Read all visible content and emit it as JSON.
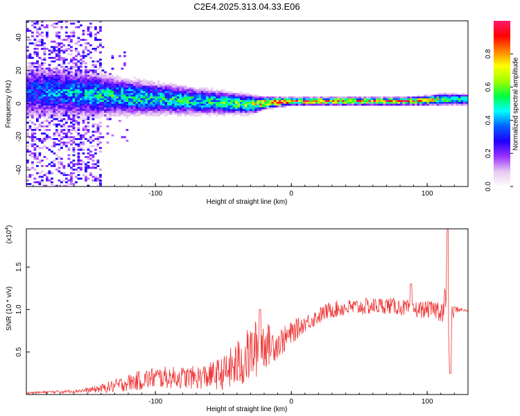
{
  "title": "C2E4.2025.313.04.33.E06",
  "chart_data": [
    {
      "type": "heatmap",
      "name": "spectrogram",
      "xlabel": "Height of straight line (km)",
      "ylabel": "Frequency (Hz)",
      "xlim": [
        -195,
        130
      ],
      "ylim": [
        -50,
        50
      ],
      "xticks": [
        -100,
        0,
        100
      ],
      "yticks": [
        -40,
        -20,
        0,
        20,
        40
      ],
      "colorbar": {
        "label": "Normalized spectral amplitude",
        "ticks": [
          0.0,
          0.2,
          0.4,
          0.6,
          0.8
        ],
        "range": [
          0,
          1
        ],
        "colors": [
          "#ffffff",
          "#e6c8f0",
          "#9b30ff",
          "#2000ff",
          "#0060ff",
          "#00ffff",
          "#00ff40",
          "#a0ff00",
          "#ffff00",
          "#ff8000",
          "#ff0000",
          "#ff1a6e"
        ]
      },
      "ridge": {
        "x": [
          -195,
          -170,
          -150,
          -130,
          -110,
          -90,
          -70,
          -50,
          -30,
          -20,
          0,
          20,
          40,
          60,
          80,
          100,
          110,
          120,
          130
        ],
        "center": [
          8,
          7,
          6,
          5,
          4,
          3,
          2,
          1,
          0,
          1,
          2,
          2,
          2,
          2,
          2,
          2.5,
          3,
          3,
          3
        ],
        "width": [
          15,
          13,
          12,
          10,
          9,
          8,
          7,
          6,
          5,
          3,
          2,
          2,
          2,
          2,
          2,
          2.5,
          3,
          3,
          3
        ],
        "peak": [
          0.35,
          0.45,
          0.5,
          0.55,
          0.55,
          0.55,
          0.55,
          0.6,
          0.7,
          0.95,
          0.98,
          0.98,
          0.98,
          0.97,
          0.95,
          0.85,
          0.7,
          0.6,
          0.55
        ]
      },
      "scatter_zone": {
        "x": [
          -195,
          -140
        ],
        "y": [
          -50,
          50
        ],
        "level": 0.25
      }
    },
    {
      "type": "line",
      "name": "snr",
      "xlabel": "Height of straight line (km)",
      "ylabel": "SNR (10 * v/v)",
      "y_multiplier": "(x10",
      "y_exponent": "4",
      "xlim": [
        -195,
        130
      ],
      "ylim": [
        0,
        1.95
      ],
      "xticks": [
        -100,
        0,
        100
      ],
      "yticks": [
        0.5,
        1.0,
        1.5
      ],
      "color": "#ee3333",
      "series": [
        {
          "name": "SNR",
          "x": [
            -195,
            -175,
            -160,
            -150,
            -140,
            -130,
            -120,
            -110,
            -100,
            -90,
            -80,
            -70,
            -60,
            -50,
            -45,
            -40,
            -35,
            -30,
            -25,
            -20,
            -15,
            -10,
            -5,
            0,
            5,
            10,
            15,
            20,
            25,
            30,
            40,
            50,
            60,
            70,
            80,
            90,
            95,
            100,
            105,
            110,
            112,
            114,
            115,
            116,
            118,
            120,
            125,
            130
          ],
          "y": [
            0.02,
            0.03,
            0.04,
            0.05,
            0.07,
            0.1,
            0.14,
            0.17,
            0.2,
            0.2,
            0.2,
            0.2,
            0.22,
            0.25,
            0.3,
            0.35,
            0.4,
            0.48,
            0.55,
            0.6,
            0.58,
            0.6,
            0.65,
            0.72,
            0.78,
            0.84,
            0.88,
            0.92,
            0.97,
            1.0,
            1.02,
            1.03,
            1.04,
            1.05,
            1.03,
            1.0,
            1.0,
            1.0,
            1.0,
            1.0,
            0.95,
            1.2,
            1.85,
            0.3,
            0.9,
            1.0,
            1.0,
            0.98
          ],
          "noise": [
            0.01,
            0.015,
            0.02,
            0.03,
            0.05,
            0.08,
            0.1,
            0.12,
            0.13,
            0.13,
            0.13,
            0.14,
            0.16,
            0.2,
            0.25,
            0.3,
            0.32,
            0.34,
            0.35,
            0.3,
            0.22,
            0.18,
            0.16,
            0.14,
            0.12,
            0.1,
            0.1,
            0.1,
            0.1,
            0.1,
            0.1,
            0.1,
            0.1,
            0.1,
            0.1,
            0.1,
            0.1,
            0.1,
            0.1,
            0.15,
            0.2,
            0.3,
            0.2,
            0.2,
            0.15,
            0.05,
            0.02,
            0.02
          ]
        }
      ],
      "spikes": [
        {
          "x": -23,
          "y": 1.0
        },
        {
          "x": 88,
          "y": 1.3
        },
        {
          "x": 115,
          "y": 1.95
        },
        {
          "x": 117,
          "y": 0.25
        }
      ]
    }
  ]
}
